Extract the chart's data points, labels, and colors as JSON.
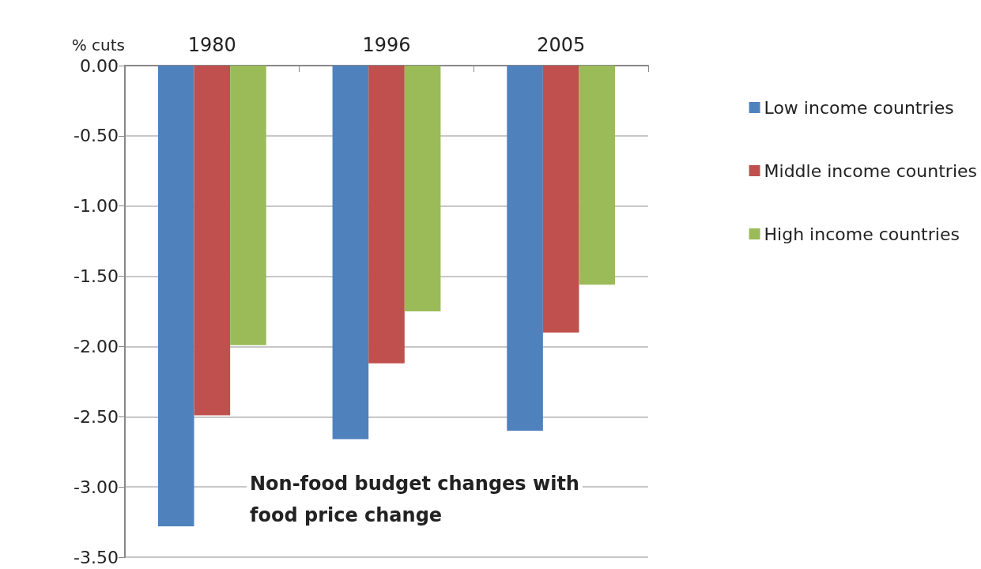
{
  "chart_data": {
    "type": "bar",
    "ylabel": "% cuts",
    "categories": [
      "1980",
      "1996",
      "2005"
    ],
    "series": [
      {
        "name": "Low income countries",
        "color": "#4f81bd",
        "values": [
          -3.28,
          -2.66,
          -2.6
        ]
      },
      {
        "name": "Middle income countries",
        "color": "#c0504d",
        "values": [
          -2.49,
          -2.12,
          -1.9
        ]
      },
      {
        "name": "High income countries",
        "color": "#9bbb59",
        "values": [
          -1.99,
          -1.75,
          -1.56
        ]
      }
    ],
    "ylim": [
      -3.5,
      0
    ],
    "yticks": [
      {
        "value": 0,
        "label": "0.00"
      },
      {
        "value": -0.5,
        "label": "-0.50"
      },
      {
        "value": -1,
        "label": "-1.00"
      },
      {
        "value": -1.5,
        "label": "-1.50"
      },
      {
        "value": -2,
        "label": "-2.00"
      },
      {
        "value": -2.5,
        "label": "-2.50"
      },
      {
        "value": -3,
        "label": "-3.00"
      },
      {
        "value": -3.5,
        "label": "-3.50"
      }
    ],
    "grid": "y",
    "legend": "right",
    "annotations": [
      "Non-food budget changes with\nfood price change"
    ]
  }
}
